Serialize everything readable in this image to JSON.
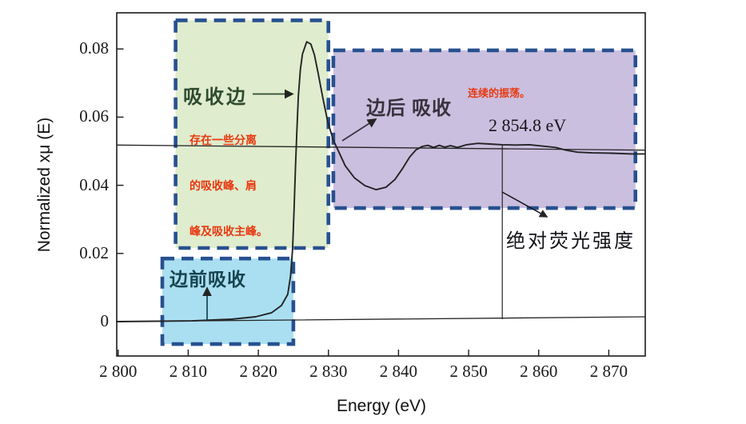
{
  "figure": {
    "background": "#ffffff",
    "type_hint": "XANES absorption spectrum with annotated regions"
  },
  "axes": {
    "x": {
      "label": "Energy (eV)",
      "ticks": [
        "2 800",
        "2 810",
        "2 820",
        "2 830",
        "2 840",
        "2 850",
        "2 860",
        "2 870"
      ],
      "tick_values": [
        2800,
        2810,
        2820,
        2830,
        2840,
        2850,
        2860,
        2870
      ]
    },
    "y": {
      "label": "Normalized xμ (E)",
      "ticks": [
        "0.08",
        "0.06",
        "0.04",
        "0.02",
        "0"
      ],
      "tick_values": [
        0.08,
        0.06,
        0.04,
        0.02,
        0
      ]
    }
  },
  "chart_data": {
    "type": "line",
    "title": "",
    "xlabel": "Energy (eV)",
    "ylabel": "Normalized xμ (E)",
    "xlim": [
      2799.8,
      2875.2
    ],
    "ylim": [
      -0.0101,
      0.0906
    ],
    "grid": false,
    "series": [
      {
        "name": "absorption-spectrum",
        "color": "#242424",
        "width": 1.9,
        "x": [
          2799.8,
          2810.5,
          2816.2,
          2819.6,
          2821.9,
          2823.3,
          2824.2,
          2824.6,
          2824.9,
          2825.1,
          2825.3,
          2825.5,
          2825.7,
          2826.0,
          2826.3,
          2826.9,
          2827.5,
          2828.0,
          2828.5,
          2829.2,
          2829.9,
          2830.7,
          2831.5,
          2832.4,
          2833.7,
          2835.2,
          2836.8,
          2838.2,
          2839.5,
          2840.6,
          2841.6,
          2842.5,
          2843.4,
          2844.2,
          2845.0,
          2845.8,
          2846.6,
          2847.4,
          2848.4,
          2849.7,
          2851.3,
          2853.0,
          2854.8,
          2856.7,
          2858.7,
          2860.5,
          2862.4,
          2863.9,
          2865.5,
          2867.6,
          2870.4,
          2873.3,
          2875.2
        ],
        "y": [
          0.0,
          0.0002,
          0.0007,
          0.0014,
          0.0026,
          0.0047,
          0.008,
          0.0134,
          0.0216,
          0.033,
          0.045,
          0.056,
          0.066,
          0.074,
          0.0785,
          0.0821,
          0.0814,
          0.0783,
          0.0732,
          0.0657,
          0.0586,
          0.0532,
          0.0497,
          0.0457,
          0.0422,
          0.0399,
          0.0387,
          0.0394,
          0.0417,
          0.045,
          0.0483,
          0.0504,
          0.0514,
          0.0517,
          0.0511,
          0.0517,
          0.0512,
          0.0516,
          0.0511,
          0.0519,
          0.0523,
          0.0521,
          0.0519,
          0.0518,
          0.0519,
          0.0515,
          0.0511,
          0.0503,
          0.0497,
          0.0495,
          0.0494,
          0.0492,
          0.0492
        ]
      },
      {
        "name": "post-edge-normalization-line",
        "color": "#242424",
        "width": 1.3,
        "x": [
          2799.8,
          2875.2
        ],
        "y": [
          0.0518,
          0.0503
        ]
      },
      {
        "name": "pre-edge-baseline",
        "color": "#242424",
        "width": 1.3,
        "x": [
          2799.8,
          2875.2
        ],
        "y": [
          0.0,
          0.0014
        ]
      }
    ],
    "marker_line": {
      "energy": 2854.8,
      "from_mu": 0.0519,
      "to_mu": 0.0007,
      "label": "2 854.8 eV"
    }
  },
  "regions": [
    {
      "id": "absorption-edge",
      "fill": "#dfeccd",
      "border": "#27508f",
      "x": [
        2808.2,
        2830.0
      ],
      "y": [
        0.0216,
        0.0884
      ]
    },
    {
      "id": "pre-edge",
      "fill": "#aadff2",
      "border": "#27508f",
      "x": [
        2806.3,
        2825.0
      ],
      "y": [
        -0.0066,
        0.0185
      ]
    },
    {
      "id": "post-edge",
      "fill": "#cbbfdf",
      "border": "#27508f",
      "x": [
        2830.7,
        2873.8
      ],
      "y": [
        0.0333,
        0.0796
      ]
    }
  ],
  "annotations": {
    "edge_label": {
      "text": "吸收边",
      "color": "#2e4b2e"
    },
    "edge_note": {
      "color": "#e8380f",
      "lines": [
        "存在一些分离",
        "的吸收峰、肩",
        "峰及吸收主峰。"
      ]
    },
    "pre_edge_label": {
      "text": "边前吸收",
      "color": "#15444e"
    },
    "post_edge_label": {
      "text": "边后 吸收",
      "color": "#38323e"
    },
    "post_edge_note": {
      "text": "连续的振荡。",
      "color": "#e8380f"
    },
    "energy_marker_label": {
      "text": "2 854.8 eV",
      "color": "#17141a"
    },
    "fluorescence_label": {
      "text": "绝对荧光强度",
      "color": "#17141a"
    }
  }
}
